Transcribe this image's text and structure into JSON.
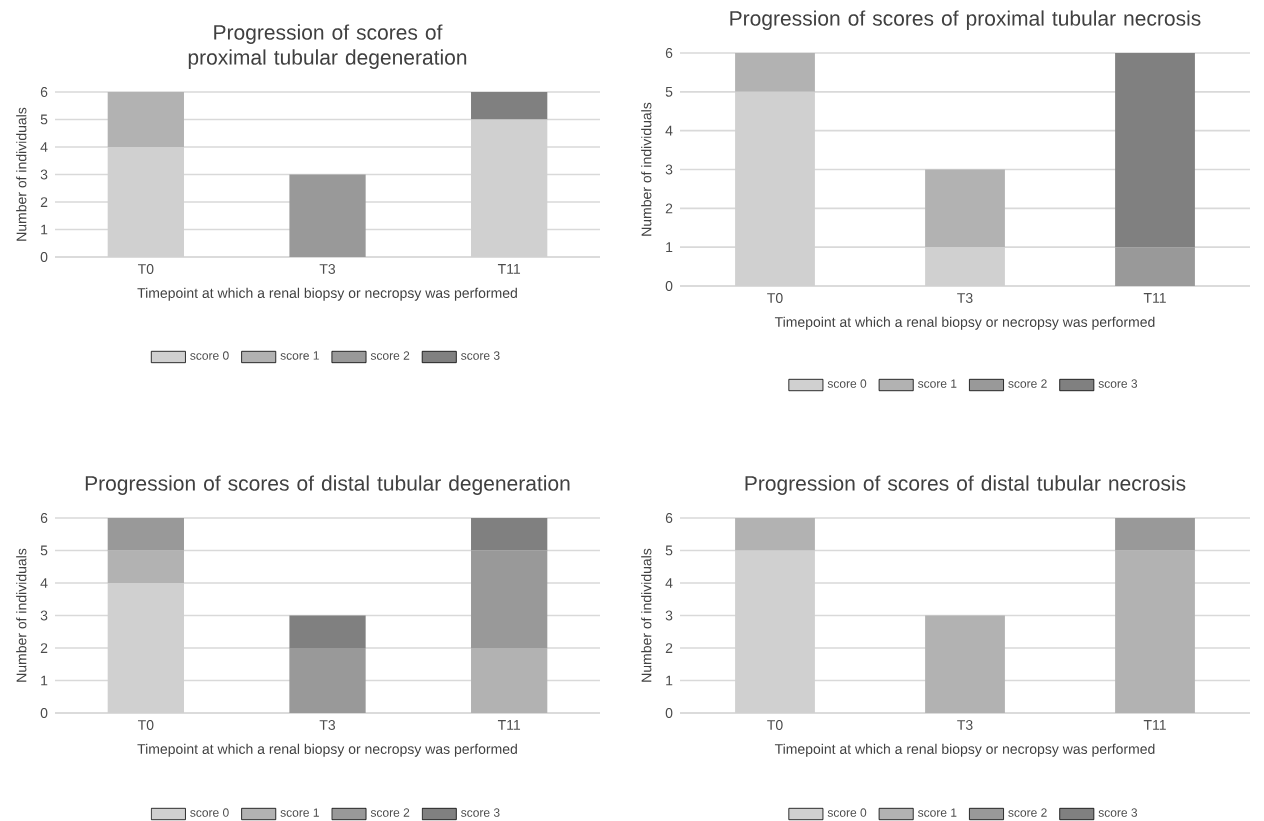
{
  "chart_data": [
    {
      "type": "bar",
      "stacked": true,
      "title": "Progression of scores of proximal tubular degeneration",
      "xlabel": "Timepoint at which a renal biopsy or necropsy was performed",
      "ylabel": "Number of individuals",
      "categories": [
        "T0",
        "T3",
        "T11"
      ],
      "ylim": [
        0,
        6
      ],
      "yticks": [
        0,
        1,
        2,
        3,
        4,
        5,
        6
      ],
      "grid": "y",
      "legend": "bottom",
      "series": [
        {
          "name": "score 0",
          "color": "#d0d0d0",
          "values": [
            4,
            0,
            5
          ]
        },
        {
          "name": "score 1",
          "color": "#b2b2b2",
          "values": [
            2,
            0,
            0
          ]
        },
        {
          "name": "score 2",
          "color": "#999999",
          "values": [
            0,
            3,
            0
          ]
        },
        {
          "name": "score 3",
          "color": "#808080",
          "values": [
            0,
            0,
            1
          ]
        }
      ]
    },
    {
      "type": "bar",
      "stacked": true,
      "title": "Progression of scores of proximal tubular necrosis",
      "xlabel": "Timepoint at which a renal biopsy or necropsy was performed",
      "ylabel": "Number of individuals",
      "categories": [
        "T0",
        "T3",
        "T11"
      ],
      "ylim": [
        0,
        6
      ],
      "yticks": [
        0,
        1,
        2,
        3,
        4,
        5,
        6
      ],
      "grid": "y",
      "legend": "bottom",
      "series": [
        {
          "name": "score 0",
          "color": "#d0d0d0",
          "values": [
            5,
            1,
            0
          ]
        },
        {
          "name": "score 1",
          "color": "#b2b2b2",
          "values": [
            1,
            2,
            0
          ]
        },
        {
          "name": "score 2",
          "color": "#999999",
          "values": [
            0,
            0,
            1
          ]
        },
        {
          "name": "score 3",
          "color": "#808080",
          "values": [
            0,
            0,
            5
          ]
        }
      ]
    },
    {
      "type": "bar",
      "stacked": true,
      "title": "Progression of scores of distal tubular degeneration",
      "xlabel": "Timepoint at which a renal biopsy or necropsy was performed",
      "ylabel": "Number of individuals",
      "categories": [
        "T0",
        "T3",
        "T11"
      ],
      "ylim": [
        0,
        6
      ],
      "yticks": [
        0,
        1,
        2,
        3,
        4,
        5,
        6
      ],
      "grid": "y",
      "legend": "bottom",
      "series": [
        {
          "name": "score 0",
          "color": "#d0d0d0",
          "values": [
            4,
            0,
            0
          ]
        },
        {
          "name": "score 1",
          "color": "#b2b2b2",
          "values": [
            1,
            0,
            2
          ]
        },
        {
          "name": "score 2",
          "color": "#999999",
          "values": [
            1,
            2,
            3
          ]
        },
        {
          "name": "score 3",
          "color": "#808080",
          "values": [
            0,
            1,
            1
          ]
        }
      ]
    },
    {
      "type": "bar",
      "stacked": true,
      "title": "Progression of scores of distal tubular necrosis",
      "xlabel": "Timepoint at which a renal biopsy or necropsy was performed",
      "ylabel": "Number of individuals",
      "categories": [
        "T0",
        "T3",
        "T11"
      ],
      "ylim": [
        0,
        6
      ],
      "yticks": [
        0,
        1,
        2,
        3,
        4,
        5,
        6
      ],
      "grid": "y",
      "legend": "bottom",
      "series": [
        {
          "name": "score 0",
          "color": "#d0d0d0",
          "values": [
            5,
            0,
            0
          ]
        },
        {
          "name": "score 1",
          "color": "#b2b2b2",
          "values": [
            1,
            3,
            5
          ]
        },
        {
          "name": "score 2",
          "color": "#999999",
          "values": [
            0,
            0,
            1
          ]
        },
        {
          "name": "score 3",
          "color": "#808080",
          "values": [
            0,
            0,
            0
          ]
        }
      ]
    }
  ]
}
